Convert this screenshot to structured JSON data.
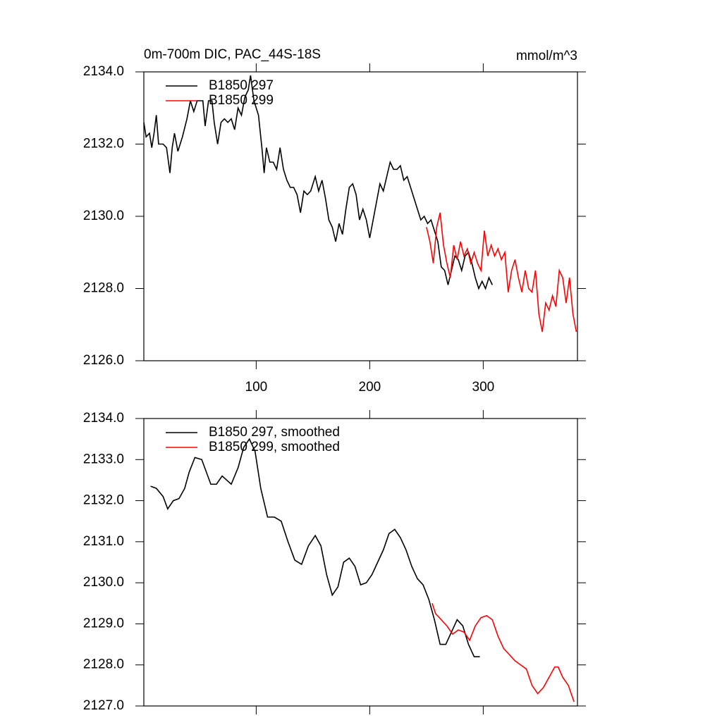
{
  "chart_data": [
    {
      "type": "line",
      "title": "0m-700m DIC, PAC_44S-18S",
      "units": "mmol/m^3",
      "xlim": [
        1,
        383
      ],
      "xticks": [
        100,
        200,
        300
      ],
      "ylim": [
        2126,
        2134
      ],
      "yticks": [
        {
          "value": 2126,
          "label": "2126.0"
        },
        {
          "value": 2128,
          "label": "2128.0"
        },
        {
          "value": 2130,
          "label": "2130.0"
        },
        {
          "value": 2132,
          "label": "2132.0"
        },
        {
          "value": 2134,
          "label": "2134.0"
        }
      ],
      "series": [
        {
          "name": "B1850 297",
          "color": "#000000",
          "x": [
            1,
            3,
            6,
            8,
            10,
            12,
            14,
            18,
            21,
            24,
            26,
            28,
            31,
            35,
            39,
            42,
            45,
            48,
            53,
            55,
            58,
            61,
            63,
            66,
            69,
            72,
            75,
            78,
            81,
            84,
            87,
            90,
            93,
            95,
            98,
            102,
            105,
            107,
            109,
            112,
            115,
            118,
            121,
            124,
            127,
            130,
            133,
            136,
            139,
            142,
            145,
            148,
            152,
            155,
            158,
            161,
            164,
            167,
            170,
            173,
            176,
            179,
            182,
            185,
            188,
            191,
            194,
            197,
            200,
            203,
            206,
            209,
            212,
            215,
            218,
            221,
            224,
            227,
            230,
            233,
            236,
            239,
            242,
            245,
            248,
            251,
            254,
            257,
            260,
            263,
            266,
            269,
            272,
            275,
            278,
            281,
            284,
            287,
            290,
            293,
            296,
            299,
            302,
            305,
            308
          ],
          "values": [
            2132.6,
            2132.2,
            2132.3,
            2131.9,
            2132.3,
            2132.8,
            2132.0,
            2132.0,
            2131.9,
            2131.2,
            2131.9,
            2132.3,
            2131.8,
            2132.2,
            2132.7,
            2133.2,
            2132.9,
            2133.2,
            2133.2,
            2132.5,
            2133.2,
            2133.2,
            2132.6,
            2132.0,
            2132.6,
            2132.7,
            2132.6,
            2132.7,
            2132.4,
            2133.0,
            2132.8,
            2133.3,
            2133.5,
            2133.9,
            2133.2,
            2132.8,
            2131.9,
            2131.2,
            2131.9,
            2131.5,
            2131.5,
            2131.3,
            2131.9,
            2131.3,
            2131.0,
            2130.8,
            2130.8,
            2130.6,
            2130.1,
            2130.7,
            2130.6,
            2130.7,
            2131.1,
            2130.7,
            2131.0,
            2130.5,
            2129.9,
            2129.7,
            2129.3,
            2129.8,
            2129.5,
            2130.2,
            2130.8,
            2130.9,
            2130.6,
            2129.9,
            2130.2,
            2129.9,
            2129.4,
            2129.9,
            2130.4,
            2130.9,
            2130.7,
            2131.1,
            2131.5,
            2131.3,
            2131.3,
            2131.4,
            2131.0,
            2131.1,
            2130.8,
            2130.5,
            2130.2,
            2129.9,
            2130.0,
            2129.8,
            2129.9,
            2129.6,
            2129.3,
            2128.6,
            2128.5,
            2128.1,
            2128.5,
            2128.9,
            2128.8,
            2128.5,
            2128.9,
            2129.0,
            2128.7,
            2128.3,
            2128.0,
            2128.2,
            2128.0,
            2128.3,
            2128.1
          ]
        },
        {
          "name": "B1850 299",
          "color": "#ff0000",
          "x": [
            250,
            253,
            256,
            259,
            262,
            265,
            268,
            271,
            274,
            277,
            280,
            283,
            286,
            289,
            292,
            295,
            298,
            301,
            304,
            307,
            310,
            313,
            316,
            319,
            322,
            325,
            328,
            331,
            334,
            337,
            340,
            343,
            346,
            349,
            352,
            355,
            358,
            361,
            364,
            367,
            370,
            373,
            376,
            379,
            382
          ],
          "values": [
            2129.7,
            2129.3,
            2128.7,
            2129.7,
            2130.1,
            2129.2,
            2128.7,
            2128.3,
            2129.2,
            2128.8,
            2129.3,
            2128.9,
            2129.1,
            2128.7,
            2129.0,
            2128.7,
            2128.5,
            2129.6,
            2128.9,
            2129.2,
            2128.9,
            2129.1,
            2128.8,
            2129.0,
            2127.9,
            2128.5,
            2128.8,
            2128.3,
            2127.9,
            2128.5,
            2128.0,
            2127.9,
            2128.5,
            2127.3,
            2126.8,
            2127.6,
            2127.4,
            2127.8,
            2127.5,
            2128.5,
            2128.3,
            2127.6,
            2128.3,
            2127.3,
            2126.8
          ]
        }
      ]
    },
    {
      "type": "line",
      "xlim": [
        1,
        383
      ],
      "xticks": [
        100,
        200,
        300
      ],
      "ylim": [
        2127,
        2134
      ],
      "yticks": [
        {
          "value": 2127,
          "label": "2127.0"
        },
        {
          "value": 2128,
          "label": "2128.0"
        },
        {
          "value": 2129,
          "label": "2129.0"
        },
        {
          "value": 2130,
          "label": "2130.0"
        },
        {
          "value": 2131,
          "label": "2131.0"
        },
        {
          "value": 2132,
          "label": "2132.0"
        },
        {
          "value": 2133,
          "label": "2133.0"
        },
        {
          "value": 2134,
          "label": "2134.0"
        }
      ],
      "series": [
        {
          "name": "B1850 297, smoothed",
          "color": "#000000",
          "x": [
            7,
            12,
            18,
            22,
            27,
            32,
            37,
            41,
            46,
            52,
            56,
            60,
            65,
            70,
            74,
            78,
            84,
            89,
            94,
            99,
            104,
            110,
            116,
            122,
            128,
            134,
            140,
            146,
            152,
            157,
            162,
            167,
            172,
            177,
            182,
            187,
            192,
            197,
            202,
            207,
            212,
            217,
            222,
            227,
            232,
            237,
            242,
            247,
            252,
            257,
            262,
            267,
            272,
            277,
            282,
            287,
            292,
            297
          ],
          "values": [
            2132.35,
            2132.3,
            2132.1,
            2131.8,
            2132.0,
            2132.05,
            2132.3,
            2132.7,
            2133.05,
            2133.0,
            2132.7,
            2132.4,
            2132.4,
            2132.6,
            2132.5,
            2132.4,
            2132.8,
            2133.3,
            2133.5,
            2133.2,
            2132.3,
            2131.6,
            2131.6,
            2131.5,
            2131.0,
            2130.55,
            2130.45,
            2130.9,
            2131.15,
            2130.9,
            2130.2,
            2129.7,
            2129.9,
            2130.5,
            2130.6,
            2130.4,
            2129.95,
            2130.0,
            2130.2,
            2130.5,
            2130.8,
            2131.2,
            2131.3,
            2131.1,
            2130.8,
            2130.4,
            2130.1,
            2129.95,
            2129.6,
            2129.1,
            2128.5,
            2128.5,
            2128.8,
            2129.1,
            2128.95,
            2128.5,
            2128.2,
            2128.2
          ]
        },
        {
          "name": "B1850 299, smoothed",
          "color": "#ff0000",
          "x": [
            255,
            258,
            263,
            268,
            273,
            278,
            283,
            288,
            293,
            298,
            303,
            308,
            313,
            318,
            323,
            328,
            333,
            338,
            343,
            348,
            353,
            358,
            363,
            366,
            370,
            375,
            380
          ],
          "values": [
            2129.5,
            2129.25,
            2129.1,
            2128.95,
            2128.75,
            2128.85,
            2128.8,
            2128.6,
            2128.95,
            2129.15,
            2129.2,
            2129.1,
            2128.7,
            2128.4,
            2128.25,
            2128.1,
            2128.0,
            2127.9,
            2127.5,
            2127.3,
            2127.45,
            2127.7,
            2127.95,
            2127.95,
            2127.7,
            2127.5,
            2127.1
          ]
        }
      ]
    }
  ]
}
